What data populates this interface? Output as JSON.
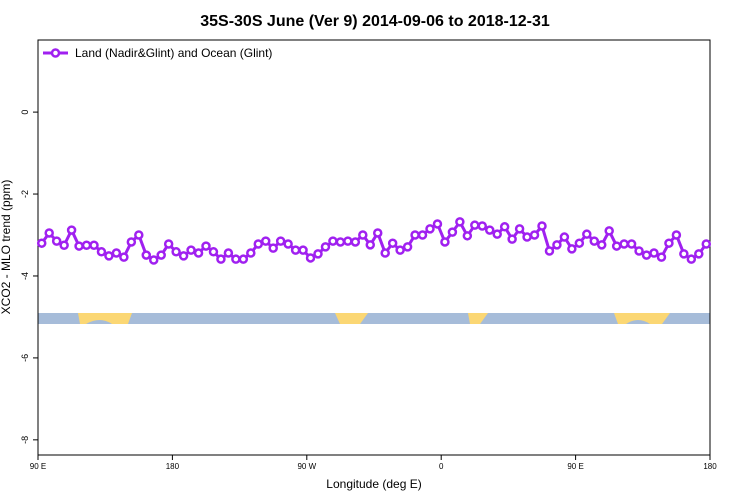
{
  "chart_data": {
    "type": "line",
    "title": "35S-30S June (Ver 9)   2014-09-06 to 2018-12-31",
    "x_label": "Longitude (deg E)",
    "y_label": "XCO2 - MLO trend (ppm)",
    "legend": "top-left",
    "x": [
      92.5,
      97.5,
      102.5,
      107.5,
      112.5,
      117.5,
      122.5,
      127.5,
      132.5,
      137.5,
      142.5,
      147.5,
      152.5,
      157.5,
      162.5,
      167.5,
      172.5,
      177.5,
      182.5,
      187.5,
      192.5,
      197.5,
      202.5,
      207.5,
      212.5,
      217.5,
      222.5,
      227.5,
      232.5,
      237.5,
      242.5,
      247.5,
      252.5,
      257.5,
      262.5,
      267.5,
      272.5,
      277.5,
      282.5,
      287.5,
      292.5,
      297.5,
      302.5,
      307.5,
      312.5,
      317.5,
      322.5,
      327.5,
      332.5,
      337.5,
      342.5,
      347.5,
      352.5,
      357.5,
      362.5,
      367.5,
      372.5,
      377.5,
      382.5,
      387.5,
      392.5,
      397.5,
      402.5,
      407.5,
      412.5,
      417.5,
      422.5,
      427.5,
      432.5,
      437.5,
      442.5,
      447.5,
      452.5,
      457.5,
      462.5,
      467.5,
      472.5,
      477.5,
      482.5,
      487.5,
      492.5,
      497.5,
      502.5,
      507.5,
      512.5,
      517.5,
      522.5,
      527.5,
      532.5,
      537.5
    ],
    "series": [
      {
        "name": "Land (Nadir&Glint) and Ocean (Glint)",
        "color": "#a020f0",
        "values": [
          -3.2,
          -2.95,
          -3.15,
          -3.25,
          -2.88,
          -3.27,
          -3.25,
          -3.25,
          -3.41,
          -3.51,
          -3.44,
          -3.54,
          -3.17,
          -3.0,
          -3.49,
          -3.61,
          -3.49,
          -3.22,
          -3.41,
          -3.51,
          -3.37,
          -3.44,
          -3.27,
          -3.41,
          -3.59,
          -3.44,
          -3.59,
          -3.59,
          -3.44,
          -3.22,
          -3.15,
          -3.32,
          -3.15,
          -3.22,
          -3.37,
          -3.37,
          -3.56,
          -3.46,
          -3.29,
          -3.15,
          -3.17,
          -3.15,
          -3.17,
          -3.0,
          -3.24,
          -2.95,
          -3.44,
          -3.2,
          -3.37,
          -3.29,
          -3.0,
          -3.0,
          -2.85,
          -2.73,
          -3.17,
          -2.93,
          -2.68,
          -3.02,
          -2.76,
          -2.78,
          -2.88,
          -2.98,
          -2.8,
          -3.1,
          -2.85,
          -3.05,
          -3.0,
          -2.78,
          -3.39,
          -3.24,
          -3.05,
          -3.34,
          -3.2,
          -2.98,
          -3.15,
          -3.24,
          -2.9,
          -3.27,
          -3.22,
          -3.22,
          -3.39,
          -3.49,
          -3.44,
          -3.54,
          -3.2,
          -3.0,
          -3.46,
          -3.59,
          -3.46,
          -3.22
        ]
      }
    ],
    "xlim": [
      90,
      540
    ],
    "xticks": [
      {
        "value": 90,
        "label": "90 E"
      },
      180,
      {
        "value": 270,
        "label": "90 W"
      },
      {
        "value": 360,
        "label": "0"
      },
      {
        "value": 450,
        "label": "90 E"
      },
      {
        "value": 540,
        "label": "180"
      }
    ],
    "ylim": [
      -8.37,
      1.76
    ],
    "yticks": [
      -8,
      -6,
      -4,
      -2,
      0
    ]
  }
}
